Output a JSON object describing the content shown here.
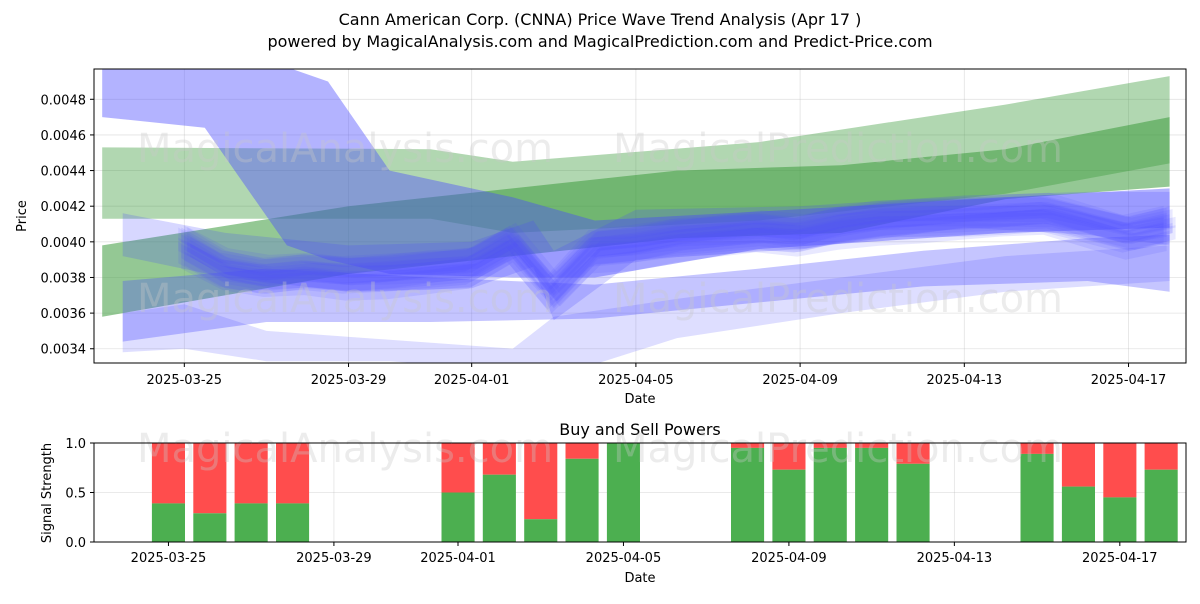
{
  "title_line1": "Cann American Corp. (CNNA) Price Wave Trend Analysis (Apr 17 )",
  "title_line2": "powered by MagicalAnalysis.com and MagicalPrediction.com and Predict-Price.com",
  "watermarks": {
    "analysis": "MagicalAnalysis.com",
    "prediction": "MagicalPrediction.com"
  },
  "colors": {
    "buy": "#4caf50",
    "sell": "#ff4d4d",
    "wave_blue": "#4a4aff",
    "wave_green": "#3c9a3c"
  },
  "chart_data": [
    {
      "type": "area",
      "name": "price-wave-chart",
      "title": "Cann American Corp. (CNNA) Price Wave Trend Analysis (Apr 17 )",
      "xlabel": "Date",
      "ylabel": "Price",
      "x_ticks": [
        "2025-03-25",
        "2025-03-29",
        "2025-04-01",
        "2025-04-05",
        "2025-04-09",
        "2025-04-13",
        "2025-04-17"
      ],
      "y_ticks": [
        "0.0034",
        "0.0036",
        "0.0038",
        "0.0040",
        "0.0042",
        "0.0044",
        "0.0046",
        "0.0048"
      ],
      "xlim_days": [
        -2.2,
        24.4
      ],
      "ylim": [
        0.00332,
        0.00497
      ],
      "grid": true,
      "blue_center_line": {
        "x_days": [
          0,
          1,
          2,
          3,
          4,
          5,
          6,
          7,
          8,
          9,
          10,
          11,
          12,
          13,
          14,
          15,
          16,
          17,
          18,
          19,
          20,
          21,
          22,
          23,
          24
        ],
        "y": [
          0.00398,
          0.00385,
          0.00381,
          0.00383,
          0.00381,
          0.00382,
          0.00384,
          0.00386,
          0.00399,
          0.00372,
          0.00396,
          0.00398,
          0.00402,
          0.00404,
          0.00406,
          0.00404,
          0.00409,
          0.00412,
          0.00413,
          0.00414,
          0.00415,
          0.00416,
          0.0041,
          0.00404,
          0.00409
        ]
      },
      "green_bands": [
        {
          "x_days": [
            -2,
            6,
            8,
            14,
            20,
            24
          ],
          "upper": [
            0.00453,
            0.00452,
            0.00445,
            0.00456,
            0.00477,
            0.00493
          ],
          "lower": [
            0.00413,
            0.00413,
            0.00405,
            0.00412,
            0.00427,
            0.00444
          ]
        },
        {
          "x_days": [
            -2,
            4,
            8,
            12,
            16,
            20,
            24
          ],
          "upper": [
            0.00398,
            0.0042,
            0.0043,
            0.0044,
            0.00443,
            0.00452,
            0.0047
          ],
          "lower": [
            0.00358,
            0.00382,
            0.00392,
            0.00402,
            0.00405,
            0.00424,
            0.00431
          ]
        }
      ],
      "blue_bands": [
        {
          "x_days": [
            -2,
            0.5,
            2.5,
            3.5,
            5,
            8,
            10,
            14,
            20,
            24
          ],
          "upper": [
            0.00498,
            0.00498,
            0.00498,
            0.0049,
            0.0044,
            0.00425,
            0.00412,
            0.00417,
            0.00425,
            0.0043
          ],
          "lower": [
            0.0047,
            0.00464,
            0.00398,
            0.0039,
            0.00382,
            0.0038,
            0.0038,
            0.00396,
            0.00405,
            0.00408
          ]
        },
        {
          "x_days": [
            -1.5,
            2,
            6,
            10,
            14,
            18,
            22,
            24
          ],
          "upper": [
            0.00378,
            0.00385,
            0.0038,
            0.00376,
            0.00385,
            0.00395,
            0.00402,
            0.00404
          ],
          "lower": [
            0.00344,
            0.00355,
            0.00355,
            0.00357,
            0.00366,
            0.00375,
            0.00378,
            0.00372
          ]
        },
        {
          "x_days": [
            -1.5,
            0,
            2,
            5,
            8,
            9,
            12,
            16,
            20,
            24
          ],
          "upper": [
            0.0036,
            0.00365,
            0.0035,
            0.00345,
            0.0034,
            0.00358,
            0.00368,
            0.0038,
            0.00392,
            0.00398
          ],
          "lower": [
            0.00338,
            0.0034,
            0.00333,
            0.00333,
            0.00328,
            0.00324,
            0.00346,
            0.0036,
            0.00372,
            0.00378
          ]
        },
        {
          "x_days": [
            -1.5,
            1,
            4,
            7,
            8.5,
            9,
            11,
            15,
            19,
            22,
            24
          ],
          "upper": [
            0.00416,
            0.00405,
            0.00398,
            0.004,
            0.00412,
            0.00395,
            0.00418,
            0.0042,
            0.00426,
            0.00428,
            0.00428
          ],
          "lower": [
            0.00392,
            0.0038,
            0.00372,
            0.00374,
            0.00386,
            0.00356,
            0.0039,
            0.00396,
            0.00408,
            0.00404,
            0.00398
          ]
        }
      ]
    },
    {
      "type": "bar",
      "name": "buy-sell-powers",
      "title": "Buy and Sell Powers",
      "xlabel": "Date",
      "ylabel": "Signal Strength",
      "x_ticks": [
        "2025-03-25",
        "2025-03-29",
        "2025-04-01",
        "2025-04-05",
        "2025-04-09",
        "2025-04-13",
        "2025-04-17"
      ],
      "y_ticks": [
        "0.0",
        "0.5",
        "1.0"
      ],
      "ylim": [
        0,
        1
      ],
      "xlim_days": [
        -1.8,
        24.6
      ],
      "bars": [
        {
          "x_day": 0,
          "buy": 0.39
        },
        {
          "x_day": 1,
          "buy": 0.29
        },
        {
          "x_day": 2,
          "buy": 0.39
        },
        {
          "x_day": 3,
          "buy": 0.39
        },
        {
          "x_day": 7,
          "buy": 0.5
        },
        {
          "x_day": 8,
          "buy": 0.68
        },
        {
          "x_day": 9,
          "buy": 0.23
        },
        {
          "x_day": 10,
          "buy": 0.84
        },
        {
          "x_day": 11,
          "buy": 1.0
        },
        {
          "x_day": 14,
          "buy": 0.95
        },
        {
          "x_day": 15,
          "buy": 0.73
        },
        {
          "x_day": 16,
          "buy": 0.95
        },
        {
          "x_day": 17,
          "buy": 0.95
        },
        {
          "x_day": 18,
          "buy": 0.79
        },
        {
          "x_day": 21,
          "buy": 0.89
        },
        {
          "x_day": 22,
          "buy": 0.56
        },
        {
          "x_day": 23,
          "buy": 0.45
        },
        {
          "x_day": 24,
          "buy": 0.73
        }
      ]
    }
  ]
}
